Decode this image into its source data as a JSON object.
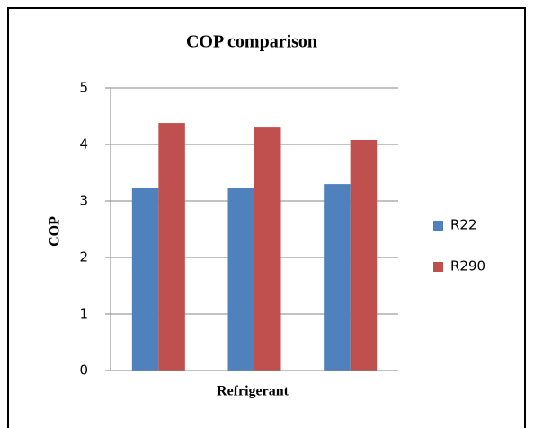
{
  "chart_data": {
    "type": "bar",
    "title": "COP comparison",
    "y_label": "COP",
    "x_label": "Refrigerant",
    "categories": [
      null,
      null,
      null
    ],
    "series": [
      {
        "name": "R22",
        "color": "#4f81bd",
        "values": [
          3.23,
          3.23,
          3.3
        ]
      },
      {
        "name": "R290",
        "color": "#c0504d",
        "values": [
          4.38,
          4.3,
          4.08
        ]
      }
    ],
    "ylim": [
      0,
      5
    ],
    "yticks": [
      0,
      1,
      2,
      3,
      4,
      5
    ],
    "grid": true,
    "legend": "right"
  }
}
